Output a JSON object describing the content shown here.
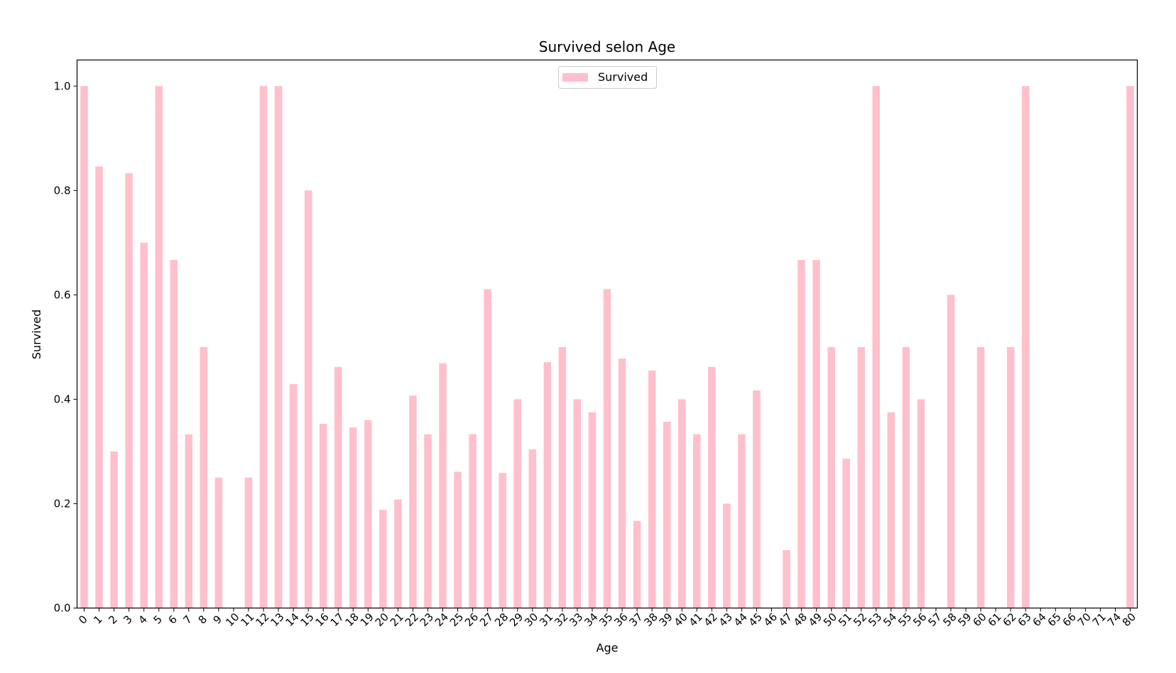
{
  "chart_data": {
    "type": "bar",
    "title": "Survived selon Age",
    "xlabel": "Age",
    "ylabel": "Survived",
    "ylim": [
      0,
      1.05
    ],
    "yticks": [
      "0.0",
      "0.2",
      "0.4",
      "0.6",
      "0.8",
      "1.0"
    ],
    "legend": {
      "placement": "top-center",
      "entries": [
        "Survived"
      ]
    },
    "bar_color": "#ffc0cb",
    "grid": false,
    "categories": [
      "0",
      "1",
      "2",
      "3",
      "4",
      "5",
      "6",
      "7",
      "8",
      "9",
      "10",
      "11",
      "12",
      "13",
      "14",
      "15",
      "16",
      "17",
      "18",
      "19",
      "20",
      "21",
      "22",
      "23",
      "24",
      "25",
      "26",
      "27",
      "28",
      "29",
      "30",
      "31",
      "32",
      "33",
      "34",
      "35",
      "36",
      "37",
      "38",
      "39",
      "40",
      "41",
      "42",
      "43",
      "44",
      "45",
      "46",
      "47",
      "48",
      "49",
      "50",
      "51",
      "52",
      "53",
      "54",
      "55",
      "56",
      "57",
      "58",
      "59",
      "60",
      "61",
      "62",
      "63",
      "64",
      "65",
      "66",
      "70",
      "71",
      "74",
      "80"
    ],
    "series": [
      {
        "name": "Survived",
        "values": [
          1.0,
          0.846,
          0.3,
          0.833,
          0.7,
          1.0,
          0.667,
          0.333,
          0.5,
          0.25,
          0.0,
          0.25,
          1.0,
          1.0,
          0.429,
          0.8,
          0.353,
          0.462,
          0.346,
          0.36,
          0.188,
          0.208,
          0.407,
          0.333,
          0.469,
          0.261,
          0.333,
          0.611,
          0.259,
          0.4,
          0.304,
          0.471,
          0.5,
          0.4,
          0.375,
          0.611,
          0.478,
          0.167,
          0.455,
          0.357,
          0.4,
          0.333,
          0.462,
          0.2,
          0.333,
          0.417,
          0.0,
          0.111,
          0.667,
          0.667,
          0.5,
          0.286,
          0.5,
          1.0,
          0.375,
          0.5,
          0.4,
          0.0,
          0.6,
          0.0,
          0.5,
          0.0,
          0.5,
          1.0,
          0.0,
          0.0,
          0.0,
          0.0,
          0.0,
          0.0,
          1.0
        ]
      }
    ]
  }
}
